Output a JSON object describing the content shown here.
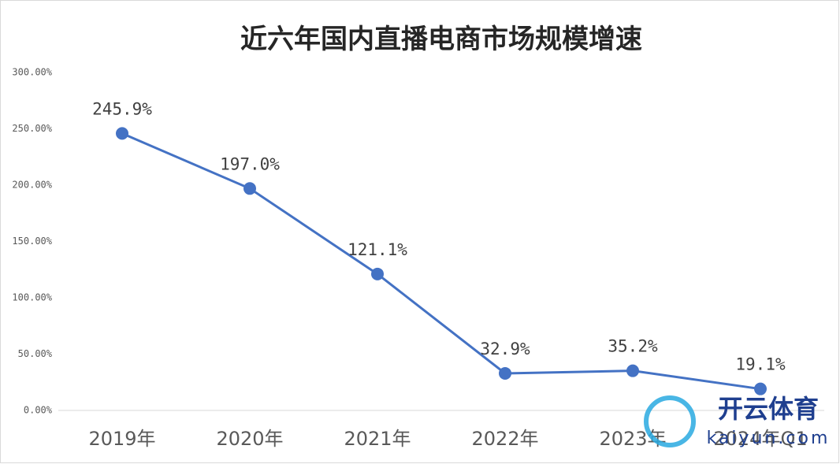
{
  "chart_data": {
    "type": "line",
    "title": "近六年国内直播电商市场规模增速",
    "categories": [
      "2019年",
      "2020年",
      "2021年",
      "2022年",
      "2023年",
      "2024年Q1"
    ],
    "values": [
      245.9,
      197.0,
      121.1,
      32.9,
      35.2,
      19.1
    ],
    "value_labels": [
      "245.9%",
      "197.0%",
      "121.1%",
      "32.9%",
      "35.2%",
      "19.1%"
    ],
    "color": "#4472c4",
    "ylim": [
      0,
      300
    ],
    "yticks": [
      {
        "value": 0,
        "label": "0.00%"
      },
      {
        "value": 50,
        "label": "50.00%"
      },
      {
        "value": 100,
        "label": "100.00%"
      },
      {
        "value": 150,
        "label": "150.00%"
      },
      {
        "value": 200,
        "label": "200.00%"
      },
      {
        "value": 250,
        "label": "250.00%"
      },
      {
        "value": 300,
        "label": "300.00%"
      }
    ],
    "grid": false,
    "watermark": {
      "brand": "开云体育",
      "site": "kaiyun.com"
    }
  }
}
